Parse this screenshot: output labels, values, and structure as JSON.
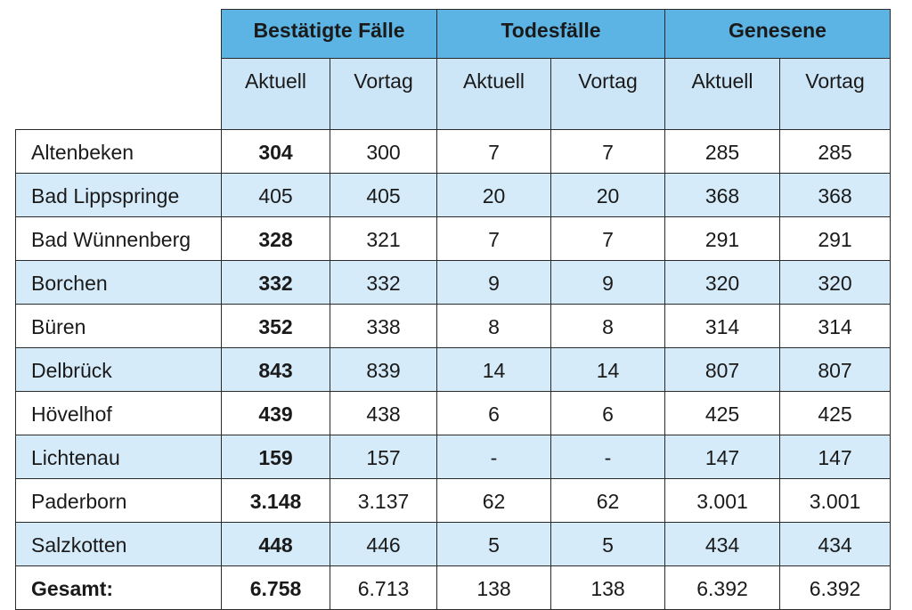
{
  "table": {
    "groups": [
      "Bestätigte Fälle",
      "Todesfälle",
      "Genesene"
    ],
    "subheaders": [
      "Aktuell",
      "Vortag",
      "Aktuell",
      "Vortag",
      "Aktuell",
      "Vortag"
    ],
    "rows": [
      {
        "name": "Altenbeken",
        "values": [
          "304",
          "300",
          "7",
          "7",
          "285",
          "285"
        ],
        "bold_current": true
      },
      {
        "name": "Bad Lippspringe",
        "values": [
          "405",
          "405",
          "20",
          "20",
          "368",
          "368"
        ],
        "bold_current": false
      },
      {
        "name": "Bad Wünnenberg",
        "values": [
          "328",
          "321",
          "7",
          "7",
          "291",
          "291"
        ],
        "bold_current": true
      },
      {
        "name": "Borchen",
        "values": [
          "332",
          "332",
          "9",
          "9",
          "320",
          "320"
        ],
        "bold_current": true
      },
      {
        "name": "Büren",
        "values": [
          "352",
          "338",
          "8",
          "8",
          "314",
          "314"
        ],
        "bold_current": true
      },
      {
        "name": "Delbrück",
        "values": [
          "843",
          "839",
          "14",
          "14",
          "807",
          "807"
        ],
        "bold_current": true
      },
      {
        "name": "Hövelhof",
        "values": [
          "439",
          "438",
          "6",
          "6",
          "425",
          "425"
        ],
        "bold_current": true
      },
      {
        "name": "Lichtenau",
        "values": [
          "159",
          "157",
          "-",
          "-",
          "147",
          "147"
        ],
        "bold_current": true
      },
      {
        "name": "Paderborn",
        "values": [
          "3.148",
          "3.137",
          "62",
          "62",
          "3.001",
          "3.001"
        ],
        "bold_current": true
      },
      {
        "name": "Salzkotten",
        "values": [
          "448",
          "446",
          "5",
          "5",
          "434",
          "434"
        ],
        "bold_current": true
      },
      {
        "name": "Gesamt:",
        "values": [
          "6.758",
          "6.713",
          "138",
          "138",
          "6.392",
          "6.392"
        ],
        "bold_current": true,
        "bold_name": true
      }
    ]
  }
}
